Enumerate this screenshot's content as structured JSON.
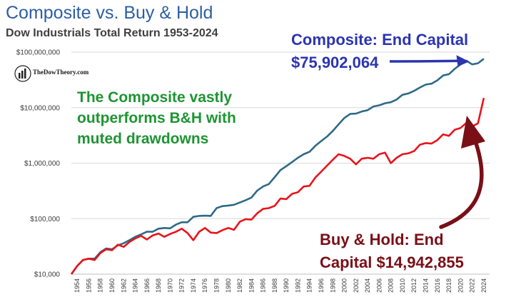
{
  "header": {
    "title": "Composite vs. Buy & Hold",
    "subtitle": "Dow Industrials Total Return 1953-2024"
  },
  "logo": {
    "text": "TheDowTheory.com"
  },
  "annotations": {
    "green_line1": "The Composite vastly",
    "green_line2": "outperforms B&H with",
    "green_line3": "muted drawdowns",
    "blue_line1": "Composite: End Capital",
    "blue_line2": "$75,902,064",
    "red_line1": "Buy & Hold: End",
    "red_line2": "Capital $14,942,855"
  },
  "colors": {
    "composite": "#2e6a86",
    "buyhold": "#e8141c",
    "blue_arrow": "#2b35b0",
    "red_arrow": "#7a0f17",
    "grid": "#d9d9d9"
  },
  "chart_data": {
    "type": "line",
    "title": "Composite vs. Buy & Hold",
    "subtitle": "Dow Industrials Total Return 1953-2024",
    "yscale": "log",
    "ylim": [
      10000,
      100000000
    ],
    "xlim": [
      1953,
      2025
    ],
    "ytick_labels": [
      "$10,000",
      "$100,000",
      "$1,000,000",
      "$10,000,000",
      "$100,000,000"
    ],
    "ytick_values": [
      10000,
      100000,
      1000000,
      10000000,
      100000000
    ],
    "xtick_labels": [
      "1954",
      "1956",
      "1958",
      "1960",
      "1962",
      "1964",
      "1966",
      "1968",
      "1970",
      "1972",
      "1974",
      "1976",
      "1978",
      "1980",
      "1982",
      "1984",
      "1986",
      "1988",
      "1990",
      "1992",
      "1994",
      "1996",
      "1998",
      "2000",
      "2002",
      "2004",
      "2006",
      "2008",
      "2010",
      "2012",
      "2014",
      "2016",
      "2018",
      "2020",
      "2022",
      "2024"
    ],
    "x": [
      1953,
      1954,
      1955,
      1956,
      1957,
      1958,
      1959,
      1960,
      1961,
      1962,
      1963,
      1964,
      1965,
      1966,
      1967,
      1968,
      1969,
      1970,
      1971,
      1972,
      1973,
      1974,
      1975,
      1976,
      1977,
      1978,
      1979,
      1980,
      1981,
      1982,
      1983,
      1984,
      1985,
      1986,
      1987,
      1988,
      1989,
      1990,
      1991,
      1992,
      1993,
      1994,
      1995,
      1996,
      1997,
      1998,
      1999,
      2000,
      2001,
      2002,
      2003,
      2004,
      2005,
      2006,
      2007,
      2008,
      2009,
      2010,
      2011,
      2012,
      2013,
      2014,
      2015,
      2016,
      2017,
      2018,
      2019,
      2020,
      2021,
      2022,
      2023,
      2024
    ],
    "series": [
      {
        "name": "Composite",
        "end_capital": "$75,902,064",
        "values": [
          10000,
          14000,
          18000,
          19000,
          19000,
          25000,
          29000,
          28000,
          33000,
          36000,
          41000,
          47000,
          52000,
          58000,
          58000,
          66000,
          68000,
          67000,
          78000,
          86000,
          86000,
          108000,
          112000,
          113000,
          112000,
          155000,
          168000,
          172000,
          178000,
          195000,
          215000,
          240000,
          320000,
          380000,
          420000,
          560000,
          750000,
          880000,
          1050000,
          1250000,
          1450000,
          1600000,
          2050000,
          2500000,
          3000000,
          3800000,
          5000000,
          6500000,
          7700000,
          7800000,
          8500000,
          9000000,
          10500000,
          11000000,
          12000000,
          12500000,
          14000000,
          17000000,
          18000000,
          20000000,
          23000000,
          26000000,
          27000000,
          31000000,
          38000000,
          40000000,
          50000000,
          60000000,
          70000000,
          60000000,
          63000000,
          75902064
        ]
      },
      {
        "name": "Buy & Hold",
        "end_capital": "$14,942,855",
        "values": [
          10000,
          14000,
          18000,
          19000,
          18000,
          24000,
          28000,
          27000,
          34000,
          31000,
          38000,
          44000,
          49000,
          42000,
          50000,
          54000,
          47000,
          53000,
          58000,
          66000,
          55000,
          41000,
          58000,
          68000,
          56000,
          55000,
          62000,
          68000,
          63000,
          88000,
          98000,
          96000,
          125000,
          150000,
          155000,
          170000,
          230000,
          225000,
          280000,
          300000,
          380000,
          390000,
          550000,
          700000,
          900000,
          1150000,
          1450000,
          1350000,
          1200000,
          950000,
          1200000,
          1250000,
          1200000,
          1450000,
          1550000,
          1000000,
          1250000,
          1450000,
          1500000,
          1650000,
          2150000,
          2300000,
          2250000,
          2600000,
          3300000,
          3100000,
          4000000,
          4300000,
          5300000,
          4600000,
          5200000,
          14942855
        ]
      }
    ]
  }
}
